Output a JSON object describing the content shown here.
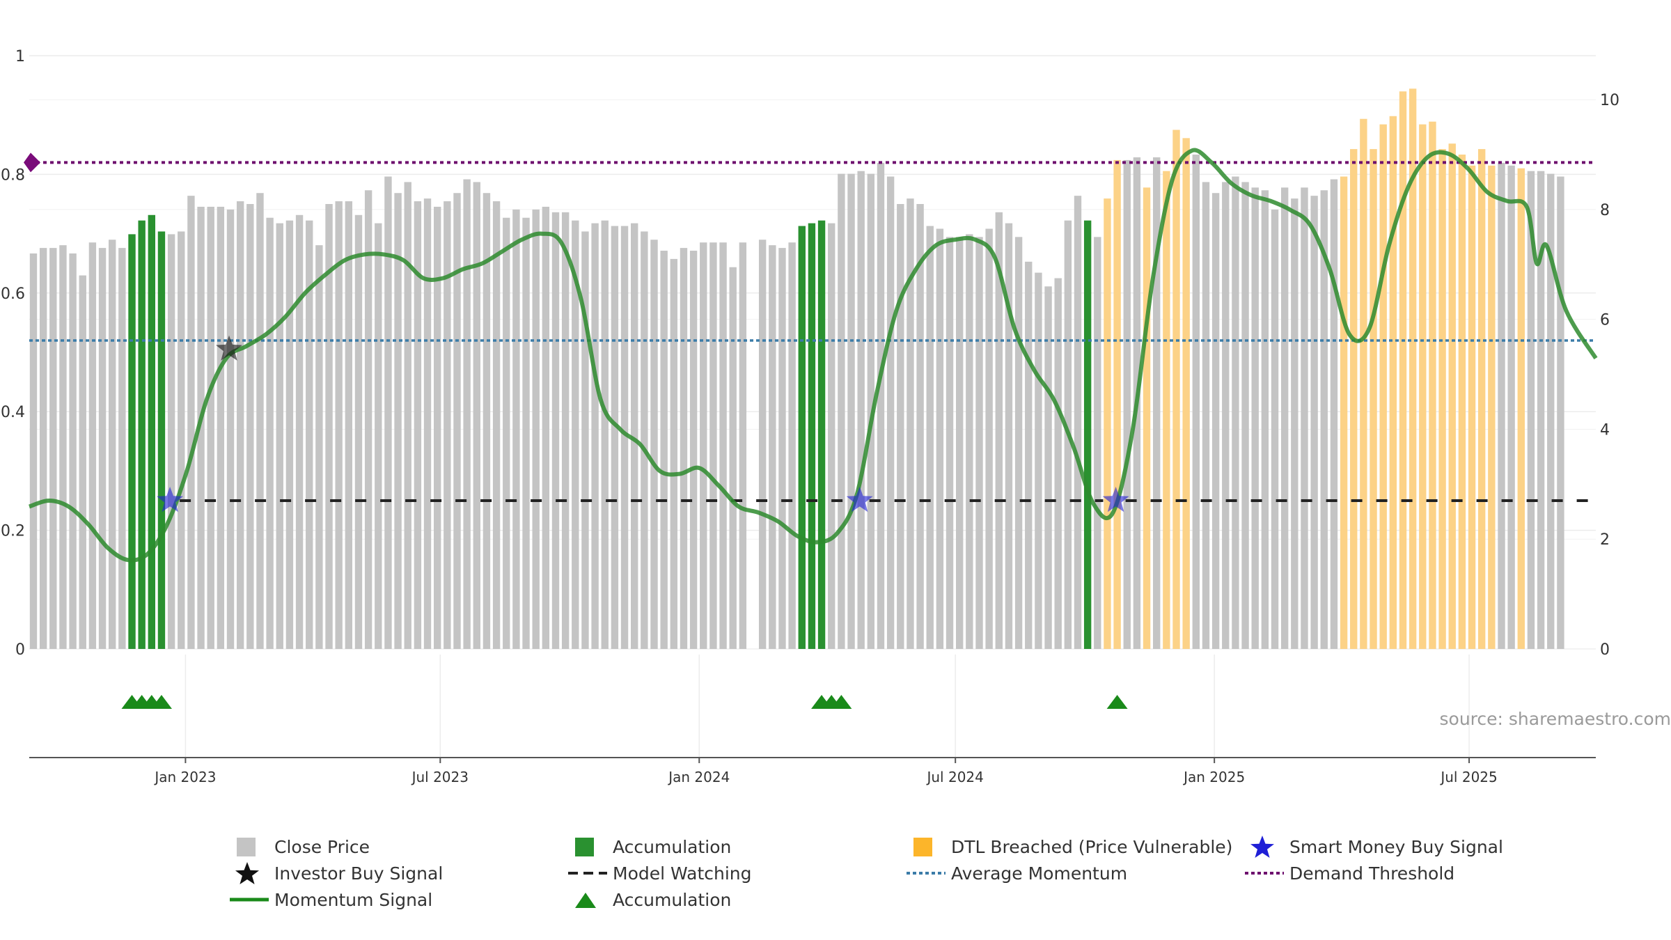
{
  "chart_data": {
    "type": "bar",
    "left_axis": {
      "ticks": [
        "0",
        "0.2",
        "0.4",
        "0.6",
        "0.8",
        "1"
      ],
      "range": [
        0,
        1
      ]
    },
    "right_axis": {
      "ticks": [
        "0",
        "2",
        "4",
        "6",
        "8",
        "10"
      ],
      "range": [
        0,
        10.8
      ]
    },
    "x_axis": {
      "ticks": [
        "Jan 2023",
        "Jul 2023",
        "Jan 2024",
        "Jul 2024",
        "Jan 2025",
        "Jul 2025"
      ],
      "range": [
        "2022-09-12",
        "2025-09-29"
      ]
    },
    "source_text": "source: sharemaestro.com",
    "series": {
      "close_price_weekly": [
        7.2,
        7.3,
        7.3,
        7.35,
        7.2,
        6.8,
        7.4,
        7.3,
        7.45,
        7.3,
        7.55,
        7.8,
        7.9,
        7.6,
        7.55,
        7.6,
        8.25,
        8.05,
        8.05,
        8.05,
        8.0,
        8.15,
        8.1,
        8.3,
        7.85,
        7.75,
        7.8,
        7.9,
        7.8,
        7.35,
        8.1,
        8.15,
        8.15,
        7.9,
        8.35,
        7.75,
        8.6,
        8.3,
        8.5,
        8.15,
        8.2,
        8.05,
        8.15,
        8.3,
        8.55,
        8.5,
        8.3,
        8.15,
        7.85,
        8.0,
        7.85,
        8.0,
        8.05,
        7.95,
        7.95,
        7.8,
        7.6,
        7.75,
        7.8,
        7.7,
        7.7,
        7.75,
        7.6,
        7.45,
        7.25,
        7.1,
        7.3,
        7.25,
        7.4,
        7.4,
        7.4,
        6.95,
        7.4,
        0,
        7.45,
        7.35,
        7.3,
        7.4,
        7.7,
        7.75,
        7.8,
        7.75,
        8.65,
        8.65,
        8.7,
        8.65,
        8.85,
        8.6,
        8.1,
        8.2,
        8.1,
        7.7,
        7.65,
        7.5,
        7.5,
        7.55,
        7.5,
        7.65,
        7.95,
        7.75,
        7.5,
        7.05,
        6.85,
        6.6,
        6.75,
        7.8,
        8.25,
        7.8,
        7.5,
        8.2,
        8.9,
        8.9,
        8.95,
        8.4,
        8.95,
        8.7,
        9.45,
        9.3,
        9.0,
        8.5,
        8.3,
        8.5,
        8.6,
        8.5,
        8.4,
        8.35,
        8.0,
        8.4,
        8.2,
        8.4,
        8.25,
        8.35,
        8.55,
        8.6,
        9.1,
        9.65,
        9.1,
        9.55,
        9.7,
        10.15,
        10.2,
        9.55,
        9.6,
        9.1,
        9.2,
        9.0,
        8.8,
        9.1,
        8.8,
        8.85,
        8.8,
        8.75,
        8.7,
        8.7,
        8.65,
        8.6
      ],
      "accumulation_weeks": [
        10,
        11,
        12,
        13,
        78,
        79,
        80,
        107
      ],
      "dtl_breached_weeks": [
        109,
        110,
        113,
        115,
        116,
        117,
        133,
        134,
        135,
        136,
        137,
        138,
        139,
        140,
        141,
        142,
        143,
        144,
        145,
        146,
        147,
        148,
        151
      ],
      "momentum_signal": [
        {
          "date": "2022-09-12",
          "value": 0.24
        },
        {
          "date": "2022-09-26",
          "value": 0.25
        },
        {
          "date": "2022-10-10",
          "value": 0.24
        },
        {
          "date": "2022-10-24",
          "value": 0.21
        },
        {
          "date": "2022-11-07",
          "value": 0.17
        },
        {
          "date": "2022-11-21",
          "value": 0.15
        },
        {
          "date": "2022-12-05",
          "value": 0.16
        },
        {
          "date": "2022-12-19",
          "value": 0.21
        },
        {
          "date": "2023-01-02",
          "value": 0.3
        },
        {
          "date": "2023-01-16",
          "value": 0.42
        },
        {
          "date": "2023-01-30",
          "value": 0.49
        },
        {
          "date": "2023-02-13",
          "value": 0.51
        },
        {
          "date": "2023-02-27",
          "value": 0.53
        },
        {
          "date": "2023-03-13",
          "value": 0.56
        },
        {
          "date": "2023-03-27",
          "value": 0.6
        },
        {
          "date": "2023-04-10",
          "value": 0.63
        },
        {
          "date": "2023-04-24",
          "value": 0.655
        },
        {
          "date": "2023-05-08",
          "value": 0.665
        },
        {
          "date": "2023-05-22",
          "value": 0.665
        },
        {
          "date": "2023-06-05",
          "value": 0.655
        },
        {
          "date": "2023-06-19",
          "value": 0.625
        },
        {
          "date": "2023-07-03",
          "value": 0.625
        },
        {
          "date": "2023-07-17",
          "value": 0.64
        },
        {
          "date": "2023-07-31",
          "value": 0.65
        },
        {
          "date": "2023-08-14",
          "value": 0.67
        },
        {
          "date": "2023-08-28",
          "value": 0.69
        },
        {
          "date": "2023-09-11",
          "value": 0.7
        },
        {
          "date": "2023-09-25",
          "value": 0.685
        },
        {
          "date": "2023-10-09",
          "value": 0.59
        },
        {
          "date": "2023-10-23",
          "value": 0.42
        },
        {
          "date": "2023-11-06",
          "value": 0.37
        },
        {
          "date": "2023-11-20",
          "value": 0.345
        },
        {
          "date": "2023-12-04",
          "value": 0.3
        },
        {
          "date": "2023-12-18",
          "value": 0.295
        },
        {
          "date": "2024-01-01",
          "value": 0.305
        },
        {
          "date": "2024-01-15",
          "value": 0.275
        },
        {
          "date": "2024-01-29",
          "value": 0.24
        },
        {
          "date": "2024-02-12",
          "value": 0.23
        },
        {
          "date": "2024-02-26",
          "value": 0.215
        },
        {
          "date": "2024-03-11",
          "value": 0.19
        },
        {
          "date": "2024-03-25",
          "value": 0.18
        },
        {
          "date": "2024-04-08",
          "value": 0.195
        },
        {
          "date": "2024-04-22",
          "value": 0.26
        },
        {
          "date": "2024-05-06",
          "value": 0.43
        },
        {
          "date": "2024-05-20",
          "value": 0.57
        },
        {
          "date": "2024-06-03",
          "value": 0.64
        },
        {
          "date": "2024-06-17",
          "value": 0.68
        },
        {
          "date": "2024-07-01",
          "value": 0.69
        },
        {
          "date": "2024-07-15",
          "value": 0.69
        },
        {
          "date": "2024-07-29",
          "value": 0.66
        },
        {
          "date": "2024-08-12",
          "value": 0.54
        },
        {
          "date": "2024-08-26",
          "value": 0.47
        },
        {
          "date": "2024-09-09",
          "value": 0.42
        },
        {
          "date": "2024-09-23",
          "value": 0.34
        },
        {
          "date": "2024-10-07",
          "value": 0.245
        },
        {
          "date": "2024-10-21",
          "value": 0.23
        },
        {
          "date": "2024-11-04",
          "value": 0.37
        },
        {
          "date": "2024-11-18",
          "value": 0.62
        },
        {
          "date": "2024-12-02",
          "value": 0.79
        },
        {
          "date": "2024-12-16",
          "value": 0.84
        },
        {
          "date": "2024-12-30",
          "value": 0.82
        },
        {
          "date": "2025-01-13",
          "value": 0.785
        },
        {
          "date": "2025-01-27",
          "value": 0.765
        },
        {
          "date": "2025-02-10",
          "value": 0.755
        },
        {
          "date": "2025-02-24",
          "value": 0.74
        },
        {
          "date": "2025-03-10",
          "value": 0.715
        },
        {
          "date": "2025-03-24",
          "value": 0.64
        },
        {
          "date": "2025-04-07",
          "value": 0.53
        },
        {
          "date": "2025-04-21",
          "value": 0.54
        },
        {
          "date": "2025-05-05",
          "value": 0.68
        },
        {
          "date": "2025-05-19",
          "value": 0.78
        },
        {
          "date": "2025-06-02",
          "value": 0.83
        },
        {
          "date": "2025-06-16",
          "value": 0.835
        },
        {
          "date": "2025-06-30",
          "value": 0.81
        },
        {
          "date": "2025-07-14",
          "value": 0.77
        },
        {
          "date": "2025-07-28",
          "value": 0.755
        },
        {
          "date": "2025-08-11",
          "value": 0.745
        },
        {
          "date": "2025-08-18",
          "value": 0.65
        },
        {
          "date": "2025-08-25",
          "value": 0.68
        },
        {
          "date": "2025-09-08",
          "value": 0.57
        },
        {
          "date": "2025-09-29",
          "value": 0.49
        }
      ],
      "average_momentum": 0.52,
      "demand_threshold": 0.82,
      "model_watching_level": 0.25,
      "model_watching_ranges": [
        [
          "2022-12-19",
          "2024-04-15"
        ],
        [
          "2024-04-22",
          "2024-10-14"
        ],
        [
          "2024-10-21",
          "2025-09-29"
        ]
      ],
      "smart_money_buy_signals": [
        {
          "date": "2022-12-19",
          "value": 0.25
        },
        {
          "date": "2024-04-22",
          "value": 0.25
        },
        {
          "date": "2024-10-21",
          "value": 0.25
        }
      ],
      "investor_buy_signals": [
        {
          "date": "2023-01-30",
          "value": 0.505
        }
      ],
      "accumulation_markers": [
        "2022-11-21",
        "2022-11-28",
        "2022-12-05",
        "2022-12-12",
        "2024-03-25",
        "2024-04-01",
        "2024-04-08",
        "2024-10-21"
      ]
    },
    "legend": [
      {
        "label": "Close Price",
        "symbol": "grey-square"
      },
      {
        "label": "Accumulation",
        "symbol": "green-square"
      },
      {
        "label": "DTL Breached (Price Vulnerable)",
        "symbol": "orange-square"
      },
      {
        "label": "Smart Money Buy Signal",
        "symbol": "blue-star"
      },
      {
        "label": "Investor Buy Signal",
        "symbol": "black-star"
      },
      {
        "label": "Model Watching",
        "symbol": "black-dashed-line"
      },
      {
        "label": "Average Momentum",
        "symbol": "blue-dotted-line"
      },
      {
        "label": "Demand Threshold",
        "symbol": "purple-dotted-line"
      },
      {
        "label": "Momentum Signal",
        "symbol": "green-line"
      },
      {
        "label": "Accumulation",
        "symbol": "green-triangle"
      }
    ],
    "colors": {
      "close_price": "#c4c4c4",
      "accumulation": "#2a9130",
      "dtl_breached": "#fcd287",
      "momentum": "#2e8b2e",
      "average_momentum": "#3b7ca8",
      "demand_threshold": "#6e0f6e",
      "model_watching": "#222222",
      "smart_money": "#1f1fd6",
      "investor": "#111111",
      "triangle": "#1a8a1a"
    }
  }
}
